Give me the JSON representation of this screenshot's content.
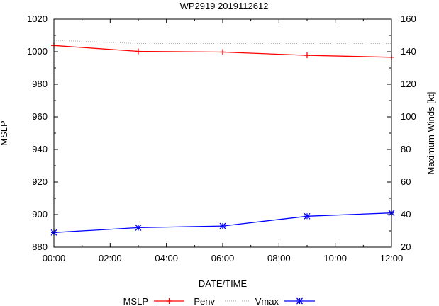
{
  "chart_data": {
    "type": "line",
    "title": "WP2919 2019112612",
    "xlabel": "DATE/TIME",
    "ylabel_left": "MSLP",
    "ylabel_right": "Maximum Winds [kt]",
    "x_hours": [
      0,
      3,
      6,
      9,
      12
    ],
    "x_range_hours": [
      0,
      12
    ],
    "x_ticks": [
      "00:00",
      "02:00",
      "04:00",
      "06:00",
      "08:00",
      "10:00",
      "12:00"
    ],
    "y_left_range": [
      880,
      1020
    ],
    "y_left_ticks": [
      "880",
      "900",
      "920",
      "940",
      "960",
      "980",
      "1000",
      "1020"
    ],
    "y_right_range": [
      20,
      160
    ],
    "y_right_ticks": [
      "20",
      "40",
      "60",
      "80",
      "100",
      "120",
      "140",
      "160"
    ],
    "series": [
      {
        "name": "MSLP",
        "axis": "left",
        "color": "#ff0000",
        "marker": "plus",
        "values": [
          1003.8,
          1000.2,
          999.8,
          997.8,
          996.6
        ]
      },
      {
        "name": "Penv",
        "axis": "left",
        "color": "#aaaaaa",
        "dotted": true,
        "values": [
          1007,
          1005,
          1005,
          1005,
          1005
        ]
      },
      {
        "name": "Vmax",
        "axis": "right",
        "color": "#0000ff",
        "marker": "star",
        "values": [
          29,
          32,
          33,
          39,
          41
        ]
      }
    ],
    "legend_position": "bottom"
  }
}
